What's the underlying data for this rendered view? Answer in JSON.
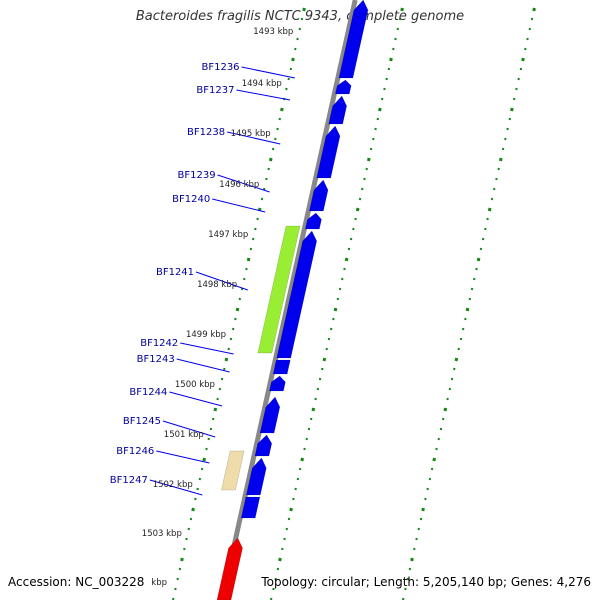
{
  "title": "Bacteroides fragilis NCTC 9343, complete genome",
  "footer": {
    "accession": "Accession: NC_003228",
    "summary": "Topology: circular; Length: 5,205,140 bp; Genes: 4,276"
  },
  "colors": {
    "gene_forward": "#0000ee",
    "gene_highlight_green": "#99ee33",
    "gene_highlight_beige": "#eeddaa",
    "gene_reverse": "#ee0000",
    "backbone": "#888888",
    "tick": "#118811",
    "label": "#000099"
  },
  "kbp_ticks": [
    "1493 kbp",
    "1494 kbp",
    "1495 kbp",
    "1496 kbp",
    "1497 kbp",
    "1498 kbp",
    "1499 kbp",
    "1500 kbp",
    "1501 kbp",
    "1502 kbp",
    "1503 kbp"
  ],
  "partial_tick_label": "kbp",
  "gene_labels": [
    "BF1236",
    "BF1237",
    "BF1238",
    "BF1239",
    "BF1240",
    "BF1241",
    "BF1242",
    "BF1243",
    "BF1244",
    "BF1245",
    "BF1246",
    "BF1247"
  ]
}
